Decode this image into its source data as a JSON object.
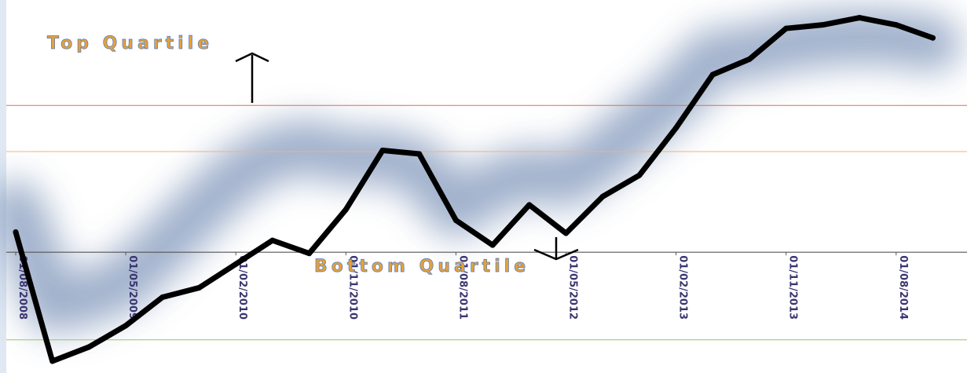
{
  "chart_data": {
    "type": "line",
    "x": [
      "01/08/2008",
      "01/11/2008",
      "01/02/2009",
      "01/05/2009",
      "01/08/2009",
      "01/11/2009",
      "01/02/2010",
      "01/05/2010",
      "01/08/2010",
      "01/11/2010",
      "01/02/2011",
      "01/05/2011",
      "01/08/2011",
      "01/11/2011",
      "01/02/2012",
      "01/05/2012",
      "01/08/2012",
      "01/11/2012",
      "01/02/2013",
      "01/05/2013",
      "01/08/2013",
      "01/11/2013",
      "01/02/2014",
      "01/05/2014",
      "01/08/2014",
      "01/11/2014"
    ],
    "series": [
      {
        "values": [
          17,
          -92,
          -80,
          -62,
          -38,
          -30,
          -10,
          10,
          -1,
          36,
          86,
          83,
          27,
          6,
          40,
          16,
          47,
          65,
          105,
          150,
          163,
          189,
          192,
          198,
          192,
          181
        ],
        "smoothed_band": [
          37,
          -45,
          -38,
          -25,
          4,
          35,
          64,
          83,
          89,
          80,
          81,
          72,
          36,
          56,
          66,
          61,
          81,
          107,
          132,
          165,
          168,
          176,
          180,
          182,
          181,
          176
        ]
      }
    ],
    "x_tick_labels": [
      "01/08/2008",
      "01/05/2009",
      "01/02/2010",
      "01/11/2010",
      "01/08/2011",
      "01/05/2012",
      "01/02/2013",
      "01/11/2013",
      "01/08/2014"
    ],
    "reference_lines": [
      {
        "name": "top_upper",
        "value": 124,
        "color": "#e0704a"
      },
      {
        "name": "top_lower",
        "value": 85,
        "color": "#f3b27a"
      },
      {
        "name": "axis",
        "value": 0,
        "color": "#555555"
      },
      {
        "name": "bottom",
        "value": -74,
        "color": "#98c46a"
      }
    ],
    "annotations": [
      {
        "text": "Top Quartile",
        "arrow": "up"
      },
      {
        "text": "Bottom Quartile",
        "arrow": "down"
      }
    ],
    "ylim": [
      -102,
      213
    ],
    "grid": false,
    "colors": {
      "line": "#000000",
      "band": "#8fa3c2",
      "left_border": "#dfe8f3"
    }
  }
}
